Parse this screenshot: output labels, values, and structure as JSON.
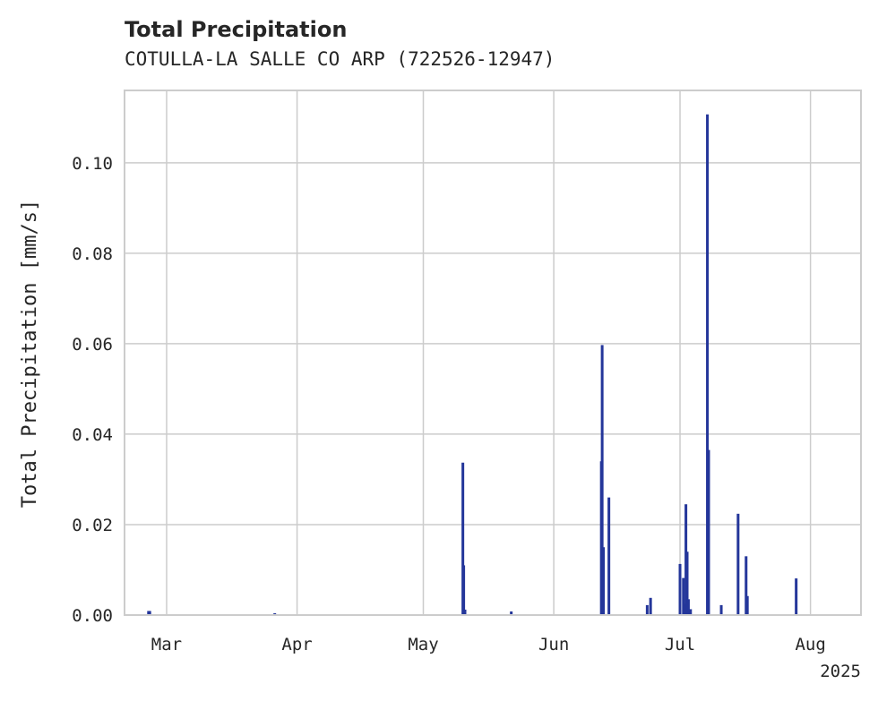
{
  "chart_data": {
    "type": "bar",
    "title": "Total Precipitation",
    "subtitle": "COTULLA-LA SALLE CO ARP (722526-12947)",
    "xlabel": "",
    "ylabel": "Total Precipitation [mm/s]",
    "year_label": "2025",
    "bar_color": "#24369a",
    "grid": true,
    "x_axis": {
      "start_day": 0,
      "end_day": 175,
      "note": "x values are days since 2025-02-19",
      "ticks": [
        {
          "label": "Mar",
          "day": 10
        },
        {
          "label": "Apr",
          "day": 41
        },
        {
          "label": "May",
          "day": 71
        },
        {
          "label": "Jun",
          "day": 102
        },
        {
          "label": "Jul",
          "day": 132
        },
        {
          "label": "Aug",
          "day": 163
        }
      ]
    },
    "y_axis": {
      "ylim": [
        0,
        0.116
      ],
      "ticks": [
        {
          "label": "0.00",
          "value": 0.0
        },
        {
          "label": "0.02",
          "value": 0.02
        },
        {
          "label": "0.04",
          "value": 0.04
        },
        {
          "label": "0.06",
          "value": 0.06
        },
        {
          "label": "0.08",
          "value": 0.08
        },
        {
          "label": "0.10",
          "value": 0.1
        }
      ]
    },
    "series": [
      {
        "name": "Total Precipitation",
        "points": [
          {
            "day": 5.7,
            "value": 0.0009
          },
          {
            "day": 6.0,
            "value": 0.0009
          },
          {
            "day": 35.7,
            "value": 0.0004
          },
          {
            "day": 80.4,
            "value": 0.0337
          },
          {
            "day": 80.6,
            "value": 0.011
          },
          {
            "day": 80.9,
            "value": 0.0012
          },
          {
            "day": 91.9,
            "value": 0.0008
          },
          {
            "day": 113.3,
            "value": 0.034
          },
          {
            "day": 113.5,
            "value": 0.0597
          },
          {
            "day": 113.8,
            "value": 0.015
          },
          {
            "day": 115.1,
            "value": 0.026
          },
          {
            "day": 124.2,
            "value": 0.0022
          },
          {
            "day": 125.0,
            "value": 0.0038
          },
          {
            "day": 132.0,
            "value": 0.0113
          },
          {
            "day": 132.8,
            "value": 0.0082
          },
          {
            "day": 133.0,
            "value": 0.0025
          },
          {
            "day": 133.4,
            "value": 0.0245
          },
          {
            "day": 133.7,
            "value": 0.014
          },
          {
            "day": 134.0,
            "value": 0.0035
          },
          {
            "day": 134.5,
            "value": 0.0013
          },
          {
            "day": 138.5,
            "value": 0.1107
          },
          {
            "day": 138.8,
            "value": 0.0365
          },
          {
            "day": 141.8,
            "value": 0.0022
          },
          {
            "day": 145.8,
            "value": 0.0224
          },
          {
            "day": 147.7,
            "value": 0.013
          },
          {
            "day": 148.0,
            "value": 0.0042
          },
          {
            "day": 159.6,
            "value": 0.0081
          }
        ]
      }
    ]
  }
}
